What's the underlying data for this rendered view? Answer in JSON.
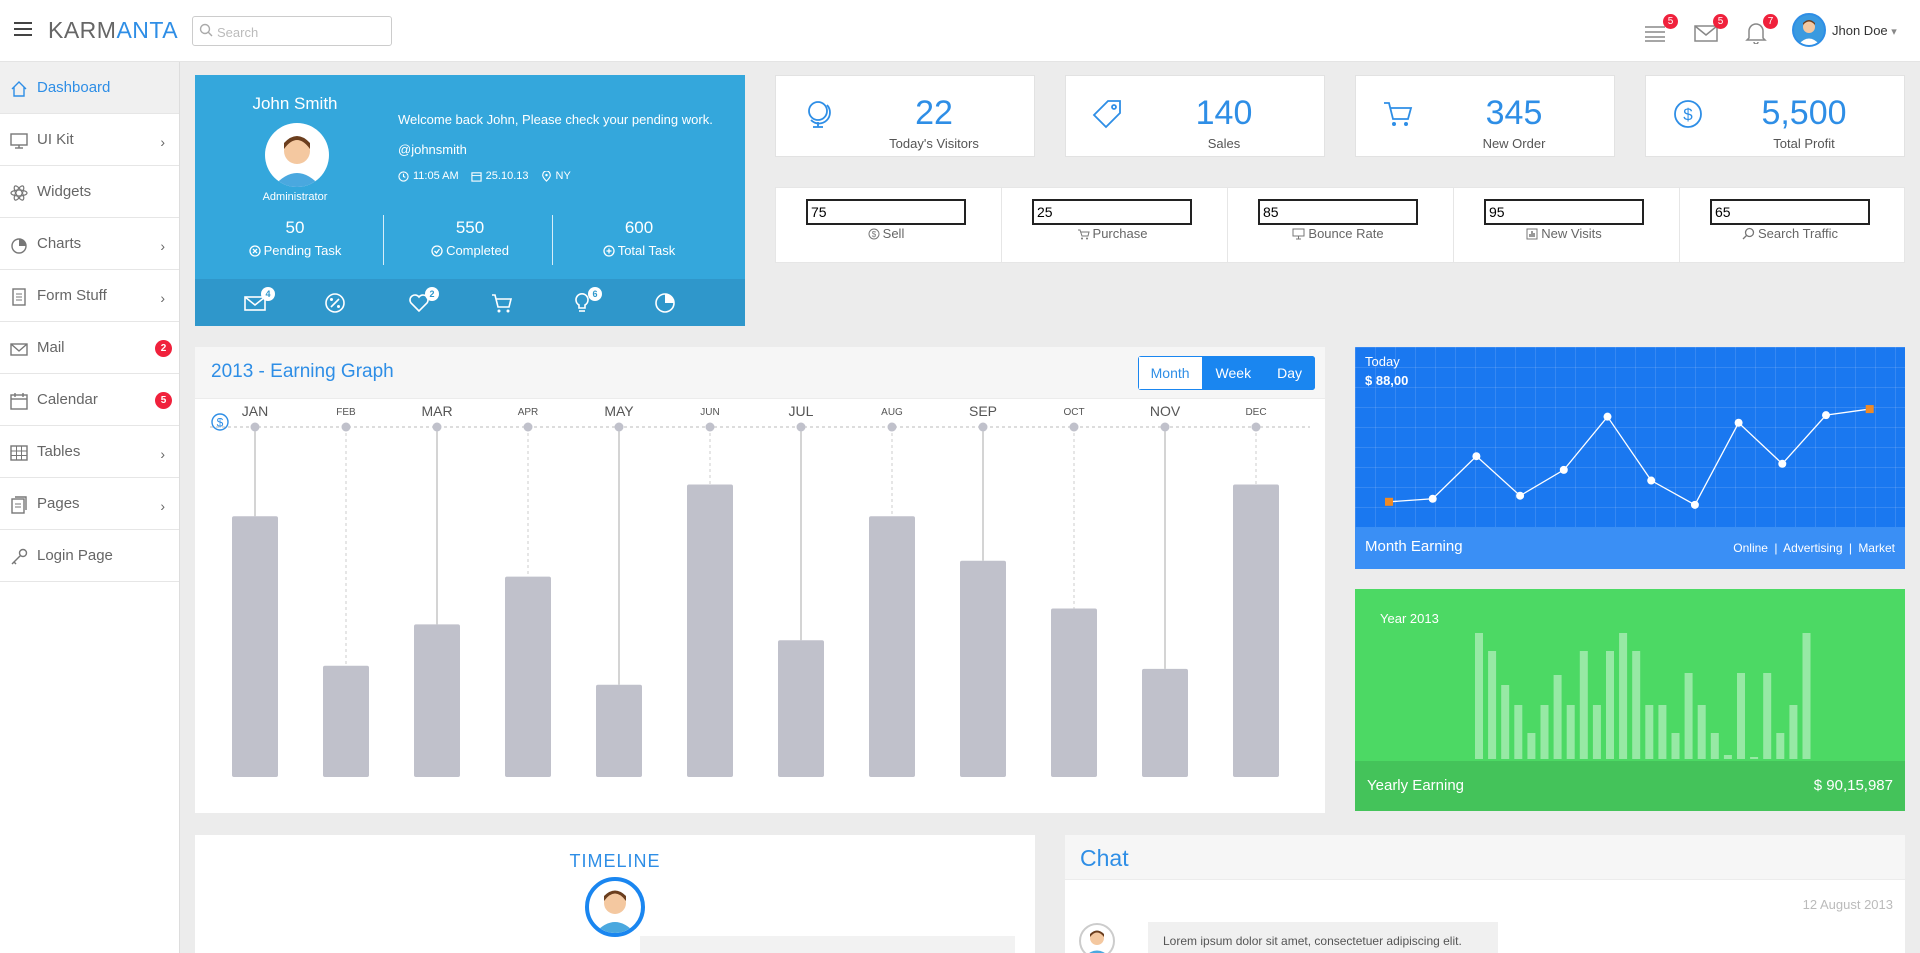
{
  "app": {
    "brand_part1": "KARM",
    "brand_part2": "ANTA",
    "search_placeholder": "Search"
  },
  "header": {
    "icons": [
      {
        "icon": "list-icon",
        "badge": "5"
      },
      {
        "icon": "envelope-icon",
        "badge": "5"
      },
      {
        "icon": "bell-icon",
        "badge": "7"
      }
    ],
    "user_name": "Jhon Doe",
    "caret": "▾"
  },
  "sidebar": {
    "items": [
      {
        "label": "Dashboard",
        "icon": "home-icon",
        "active": true
      },
      {
        "label": "UI Kit",
        "icon": "monitor-icon",
        "chevron": "›"
      },
      {
        "label": "Widgets",
        "icon": "atom-icon"
      },
      {
        "label": "Charts",
        "icon": "pie-icon",
        "chevron": "›"
      },
      {
        "label": "Form Stuff",
        "icon": "form-icon",
        "chevron": "›"
      },
      {
        "label": "Mail",
        "icon": "envelope-icon",
        "badge": "2"
      },
      {
        "label": "Calendar",
        "icon": "calendar-icon",
        "badge": "5"
      },
      {
        "label": "Tables",
        "icon": "table-icon",
        "chevron": "›"
      },
      {
        "label": "Pages",
        "icon": "pages-icon",
        "chevron": "›"
      },
      {
        "label": "Login Page",
        "icon": "key-icon"
      }
    ]
  },
  "profile": {
    "name": "John Smith",
    "role": "Administrator",
    "welcome": "Welcome back John, Please check your pending work.",
    "handle": "@johnsmith",
    "time": "11:05 AM",
    "date": "25.10.13",
    "location": "NY",
    "stats": [
      {
        "value": "50",
        "label": "Pending Task"
      },
      {
        "value": "550",
        "label": "Completed"
      },
      {
        "value": "600",
        "label": "Total Task"
      }
    ],
    "bar_icons": [
      {
        "icon": "envelope-icon",
        "badge": "4"
      },
      {
        "icon": "percent-icon",
        "badge": ""
      },
      {
        "icon": "heart-icon",
        "badge": "2"
      },
      {
        "icon": "cart-icon",
        "badge": ""
      },
      {
        "icon": "bulb-icon",
        "badge": "6"
      },
      {
        "icon": "pie-icon",
        "badge": ""
      }
    ]
  },
  "stats": [
    {
      "value": "22",
      "label": "Today's Visitors",
      "icon": "globe-icon"
    },
    {
      "value": "140",
      "label": "Sales",
      "icon": "tag-icon"
    },
    {
      "value": "345",
      "label": "New Order",
      "icon": "cart-icon"
    },
    {
      "value": "5,500",
      "label": "Total Profit",
      "icon": "dollar-icon"
    }
  ],
  "strip": [
    {
      "value": "75",
      "label": "Sell",
      "icon": "dollar-icon"
    },
    {
      "value": "25",
      "label": "Purchase",
      "icon": "cart-icon"
    },
    {
      "value": "85",
      "label": "Bounce Rate",
      "icon": "monitor-icon"
    },
    {
      "value": "95",
      "label": "New Visits",
      "icon": "chart-icon"
    },
    {
      "value": "65",
      "label": "Search Traffic",
      "icon": "search-icon"
    }
  ],
  "earning_graph": {
    "title": "2013 - Earning Graph",
    "tabs": [
      "Month",
      "Week",
      "Day"
    ],
    "active_tab": "Month"
  },
  "month_earning": {
    "today_label": "Today",
    "today_value": "$ 88,00",
    "footer_label": "Month Earning",
    "links": [
      "Online",
      "Advertising",
      "Market"
    ]
  },
  "year_earning": {
    "year_label": "Year 2013",
    "footer_label": "Yearly Earning",
    "footer_value": "$ 90,15,987"
  },
  "timeline": {
    "title": "TIMELINE"
  },
  "chat": {
    "title": "Chat",
    "date": "12 August 2013",
    "message": "Lorem ipsum dolor sit amet, consectetuer adipiscing elit."
  },
  "chart_data": [
    {
      "type": "bar",
      "categories": [
        "JAN",
        "FEB",
        "MAR",
        "APR",
        "MAY",
        "JUN",
        "JUL",
        "AUG",
        "SEP",
        "OCT",
        "NOV",
        "DEC"
      ],
      "values": [
        82,
        35,
        48,
        63,
        29,
        92,
        43,
        82,
        68,
        53,
        34,
        92
      ],
      "ylim": [
        0,
        100
      ],
      "colors": {
        "bar": "#c0c1cb"
      }
    },
    {
      "type": "line",
      "x": [
        1,
        2,
        3,
        4,
        5,
        6,
        7,
        8,
        9,
        10,
        11,
        12
      ],
      "values": [
        10,
        12,
        40,
        14,
        31,
        66,
        24,
        8,
        62,
        35,
        67,
        71
      ],
      "ylim": [
        0,
        100
      ]
    },
    {
      "type": "bar",
      "values": [
        63,
        54,
        37,
        27,
        13,
        27,
        42,
        27,
        54,
        27,
        54,
        63,
        54,
        27,
        27,
        13,
        43,
        27,
        13,
        2,
        43,
        1,
        43,
        13,
        27,
        63
      ],
      "ylim": [
        0,
        100
      ]
    }
  ]
}
